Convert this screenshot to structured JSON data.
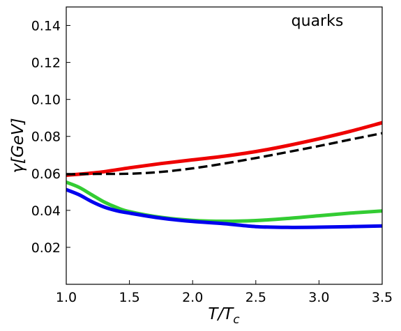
{
  "chart_data": {
    "type": "line",
    "title": "",
    "xlabel": "T/T_c",
    "ylabel": "γ[GeV]",
    "annotation": "quarks",
    "xlim": [
      1.0,
      3.5
    ],
    "ylim": [
      0.0,
      0.15
    ],
    "xticks": [
      "1.0",
      "1.5",
      "2.0",
      "2.5",
      "3.0",
      "3.5"
    ],
    "yticks": [
      "0.02",
      "0.04",
      "0.06",
      "0.08",
      "0.10",
      "0.12",
      "0.14"
    ],
    "grid": false,
    "series": [
      {
        "color": "#ee0000",
        "style": "solid",
        "x": [
          1.0,
          1.25,
          1.5,
          1.75,
          2.0,
          2.25,
          2.5,
          2.75,
          3.0,
          3.25,
          3.5
        ],
        "values": [
          0.059,
          0.0605,
          0.063,
          0.0653,
          0.0673,
          0.0693,
          0.0718,
          0.075,
          0.0787,
          0.0828,
          0.0874
        ]
      },
      {
        "color": "#000000",
        "style": "dashed",
        "x": [
          1.0,
          1.25,
          1.5,
          1.75,
          2.0,
          2.25,
          2.5,
          2.75,
          3.0,
          3.25,
          3.5
        ],
        "values": [
          0.0595,
          0.0597,
          0.0598,
          0.0608,
          0.0627,
          0.0653,
          0.0683,
          0.0715,
          0.0748,
          0.0783,
          0.0817
        ]
      },
      {
        "color": "#33cc33",
        "style": "solid",
        "x": [
          1.0,
          1.1,
          1.2,
          1.3,
          1.4,
          1.5,
          1.75,
          2.0,
          2.25,
          2.5,
          2.75,
          3.0,
          3.25,
          3.5
        ],
        "values": [
          0.0552,
          0.0525,
          0.0485,
          0.0445,
          0.0415,
          0.0393,
          0.0362,
          0.0346,
          0.0341,
          0.0345,
          0.0356,
          0.0371,
          0.0385,
          0.0397
        ]
      },
      {
        "color": "#0000ee",
        "style": "solid",
        "x": [
          1.0,
          1.1,
          1.2,
          1.3,
          1.4,
          1.5,
          1.75,
          2.0,
          2.25,
          2.5,
          2.75,
          3.0,
          3.25,
          3.5
        ],
        "values": [
          0.0512,
          0.0485,
          0.0448,
          0.0418,
          0.0398,
          0.0385,
          0.0358,
          0.034,
          0.0328,
          0.0312,
          0.0308,
          0.0309,
          0.0312,
          0.0316
        ]
      }
    ]
  }
}
